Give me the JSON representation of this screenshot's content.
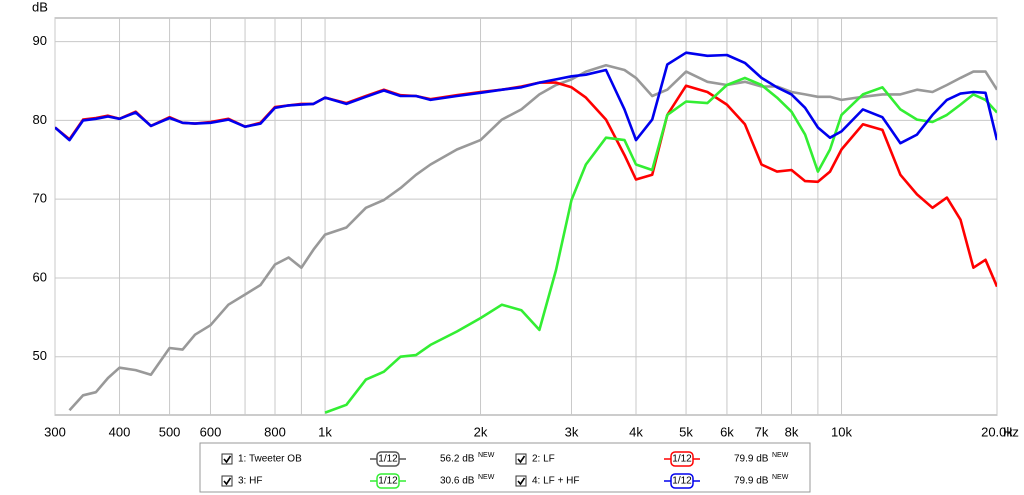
{
  "chart_data": {
    "type": "line",
    "y_label": "dB",
    "x_unit": "Hz",
    "log_x": true,
    "grid": true,
    "xlim": [
      300,
      20000
    ],
    "ylim": [
      42.6,
      93
    ],
    "yticks": [
      50,
      60,
      70,
      80,
      90
    ],
    "xticks": [
      300,
      400,
      500,
      600,
      800,
      {
        "value": 1000,
        "label": "1k"
      },
      {
        "value": 2000,
        "label": "2k"
      },
      {
        "value": 3000,
        "label": "3k"
      },
      {
        "value": 4000,
        "label": "4k"
      },
      {
        "value": 5000,
        "label": "5k"
      },
      {
        "value": 6000,
        "label": "6k"
      },
      {
        "value": 7000,
        "label": "7k"
      },
      {
        "value": 8000,
        "label": "8k"
      },
      {
        "value": 10000,
        "label": "10k"
      },
      {
        "value": 20000,
        "label": "20.0k"
      }
    ],
    "x_minor_grid": [
      700,
      900,
      9000
    ],
    "x": [
      300,
      320,
      340,
      360,
      380,
      400,
      430,
      460,
      500,
      530,
      560,
      600,
      650,
      700,
      750,
      800,
      850,
      900,
      950,
      1000,
      1100,
      1200,
      1300,
      1400,
      1500,
      1600,
      1800,
      2000,
      2200,
      2400,
      2600,
      2800,
      3000,
      3200,
      3500,
      3800,
      4000,
      4300,
      4600,
      5000,
      5500,
      6000,
      6500,
      7000,
      7500,
      8000,
      8500,
      9000,
      9500,
      10000,
      11000,
      12000,
      13000,
      14000,
      15000,
      16000,
      17000,
      18000,
      19000,
      20000
    ],
    "series": [
      {
        "name": "1: Tweeter OB",
        "color": "#999999",
        "smoothing": "1/12",
        "level": "56.2 dB",
        "badge": "NEW",
        "values": [
          null,
          43.2,
          45.1,
          45.5,
          47.3,
          48.6,
          48.3,
          47.7,
          51.1,
          50.9,
          52.8,
          54,
          56.6,
          57.9,
          59.1,
          61.7,
          62.6,
          61.3,
          63.6,
          65.5,
          66.4,
          68.9,
          69.9,
          71.4,
          73.1,
          74.4,
          76.3,
          77.5,
          80.1,
          81.4,
          83.3,
          84.5,
          85.2,
          86.2,
          87,
          86.4,
          85.4,
          83.1,
          83.9,
          86.2,
          84.9,
          84.5,
          84.9,
          84.3,
          84.3,
          83.6,
          83.3,
          83,
          83,
          82.6,
          83,
          83.3,
          83.3,
          83.9,
          83.6,
          84.5,
          85.4,
          86.2,
          86.2,
          83.9
        ]
      },
      {
        "name": "2: LF",
        "color": "#ff0000",
        "smoothing": "1/12",
        "level": "79.9 dB",
        "badge": "NEW",
        "values": [
          79.1,
          77.6,
          80.1,
          80.3,
          80.6,
          80.2,
          81.1,
          79.3,
          80.4,
          79.7,
          79.6,
          79.8,
          80.2,
          79.2,
          79.7,
          81.7,
          81.9,
          82.1,
          82.1,
          82.9,
          82.2,
          83.1,
          83.9,
          83.2,
          83.1,
          82.7,
          83.2,
          83.6,
          83.9,
          84.3,
          84.8,
          84.8,
          84.2,
          82.9,
          80.1,
          75.6,
          72.5,
          73.1,
          80.7,
          84.4,
          83.6,
          82,
          79.5,
          74.4,
          73.5,
          73.7,
          72.3,
          72.2,
          73.5,
          76.3,
          79.5,
          78.8,
          73.1,
          70.6,
          68.9,
          70.2,
          67.4,
          61.3,
          62.3,
          58.9
        ]
      },
      {
        "name": "3: HF",
        "color": "#33ee33",
        "smoothing": "1/12",
        "level": "30.6 dB",
        "badge": "NEW",
        "values": [
          null,
          null,
          null,
          null,
          null,
          null,
          null,
          null,
          null,
          null,
          null,
          null,
          null,
          null,
          null,
          null,
          null,
          null,
          null,
          42.9,
          43.9,
          47.1,
          48.1,
          50,
          50.2,
          51.5,
          53.2,
          54.9,
          56.6,
          55.9,
          53.4,
          61,
          69.9,
          74.4,
          77.8,
          77.5,
          74.4,
          73.7,
          80.7,
          82.4,
          82.2,
          84.5,
          85.4,
          84.5,
          82.9,
          81.1,
          78.2,
          73.5,
          76.3,
          80.7,
          83.3,
          84.2,
          81.4,
          80.1,
          79.8,
          80.7,
          82,
          83.3,
          82.6,
          81
        ]
      },
      {
        "name": "4: LF + HF",
        "color": "#0000ee",
        "smoothing": "1/12",
        "level": "79.9 dB",
        "badge": "NEW",
        "values": [
          79.1,
          77.5,
          80,
          80.2,
          80.5,
          80.2,
          81,
          79.3,
          80.3,
          79.7,
          79.6,
          79.7,
          80.1,
          79.2,
          79.6,
          81.6,
          81.9,
          82,
          82.1,
          82.9,
          82.1,
          83,
          83.8,
          83.1,
          83.1,
          82.6,
          83.1,
          83.5,
          83.9,
          84.2,
          84.8,
          85.2,
          85.6,
          85.8,
          86.4,
          81.4,
          77.5,
          80.1,
          87.1,
          88.6,
          88.2,
          88.3,
          87.3,
          85.4,
          84.2,
          83.3,
          81.6,
          79.1,
          77.8,
          78.6,
          81.4,
          80.4,
          77.1,
          78.2,
          80.7,
          82.6,
          83.4,
          83.6,
          83.5,
          77.5
        ]
      }
    ]
  }
}
